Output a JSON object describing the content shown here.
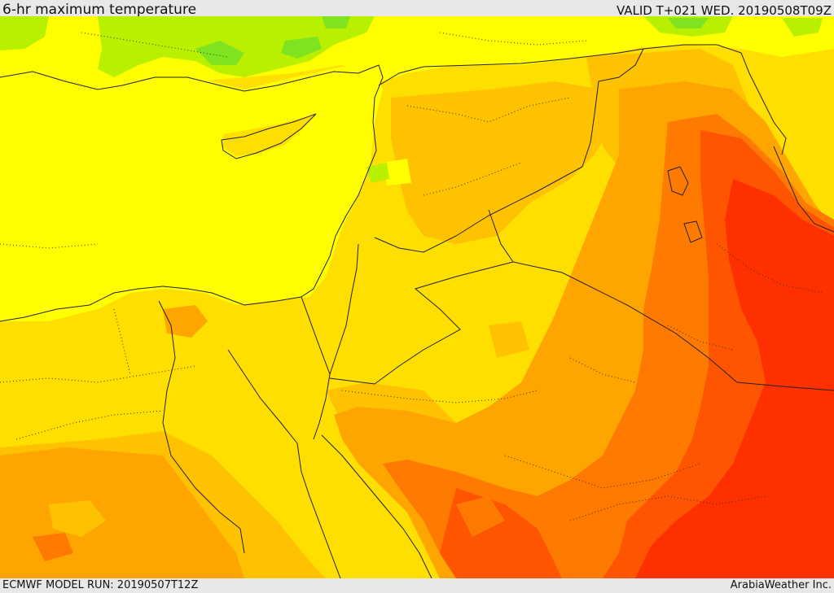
{
  "header": {
    "title": "6-hr maximum temperature",
    "valid": "VALID T+021 WED. 20190508T09Z"
  },
  "footer": {
    "model_run": "ECMWF MODEL RUN: 20190507T12Z",
    "credit": "ArabiaWeather Inc."
  },
  "map": {
    "region": "Eastern Mediterranean and Middle East",
    "field": "6-hr maximum temperature",
    "colors": {
      "green": "#7fe31f",
      "light_green": "#b8f000",
      "yellow": "#ffff00",
      "gold": "#ffdf00",
      "light_orange": "#ffc200",
      "orange": "#ffa500",
      "dark_orange": "#ff7a00",
      "red_orange": "#ff5500",
      "red": "#ff3000",
      "outline": "#222222"
    }
  }
}
